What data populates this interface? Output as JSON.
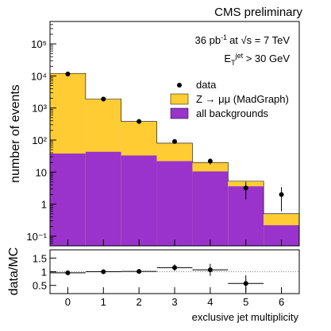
{
  "header": "CMS preliminary",
  "annotations": {
    "lumi_prefix": "36 pb",
    "lumi_exp": "-1",
    "energy_mid": "at √s = 7 TeV",
    "cut_E": "E",
    "cut_sub": "T",
    "cut_sup": "jet",
    "cut_rest": " > 30 GeV"
  },
  "colors": {
    "signal": "#ffcc33",
    "background": "#9933cc",
    "data": "#000000"
  },
  "chart_data": [
    {
      "type": "bar",
      "panel": "main",
      "ylabel": "number of events",
      "yscale": "log",
      "ylim": [
        0.05,
        500000
      ],
      "xlim": [
        -0.5,
        6.5
      ],
      "categories": [
        0,
        1,
        2,
        3,
        4,
        5,
        6
      ],
      "ytick_labels": [
        "10⁻¹",
        "1",
        "10",
        "10²",
        "10³",
        "10⁴",
        "10⁵"
      ],
      "ytick_values": [
        0.1,
        1,
        10,
        100,
        1000,
        10000,
        100000
      ],
      "series": [
        {
          "name": "Z → μμ (MadGraph)",
          "kind": "stacked-total",
          "color": "#ffcc33",
          "values": [
            12000,
            1900,
            380,
            80,
            20,
            5.2,
            0.5
          ]
        },
        {
          "name": "all backgrounds",
          "kind": "stacked-base",
          "color": "#9933cc",
          "values": [
            38,
            43,
            33,
            22,
            10.5,
            3.6,
            0.22
          ]
        },
        {
          "name": "data",
          "kind": "points",
          "color": "#000000",
          "values": [
            11500,
            1900,
            380,
            90,
            22,
            3.2,
            2.0
          ],
          "errors": [
            110,
            45,
            20,
            9.5,
            4.7,
            1.8,
            1.4
          ]
        }
      ],
      "legend": [
        "data",
        "Z → μμ (MadGraph)",
        "all backgrounds"
      ],
      "legend_position": "right-center",
      "grid": false
    },
    {
      "type": "scatter",
      "panel": "ratio",
      "ylabel": "data/MC",
      "xlabel": "exclusive jet multiplicity",
      "ylim": [
        0.2,
        1.8
      ],
      "xlim": [
        -0.5,
        6.5
      ],
      "ytick_labels": [
        "0.5",
        "1",
        "1.5"
      ],
      "ytick_values": [
        0.5,
        1.0,
        1.5
      ],
      "xtick_labels": [
        "0",
        "1",
        "2",
        "3",
        "4",
        "5",
        "6"
      ],
      "reference_line": 1.0,
      "x": [
        0,
        1,
        2,
        3,
        4,
        5
      ],
      "values": [
        0.96,
        1.0,
        1.01,
        1.15,
        1.07,
        0.57
      ],
      "errors": [
        0.02,
        0.04,
        0.05,
        0.12,
        0.22,
        0.3
      ]
    }
  ]
}
